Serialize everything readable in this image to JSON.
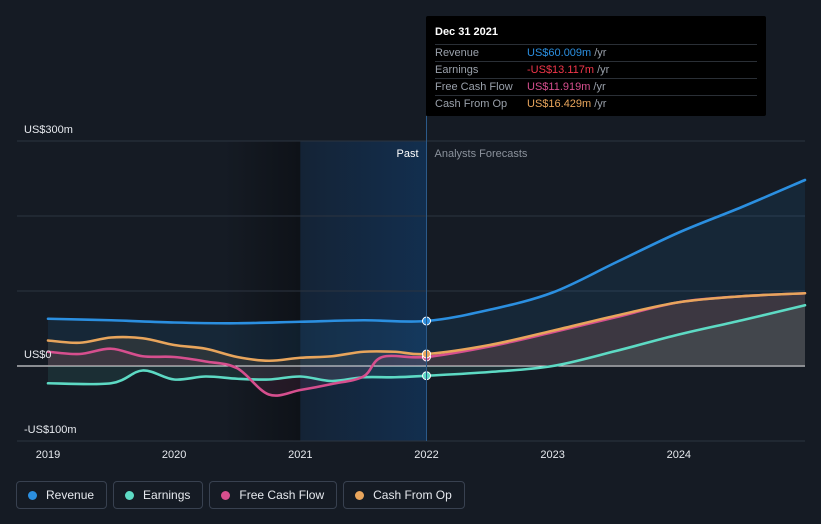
{
  "chart_data": {
    "type": "line",
    "title": "",
    "y_axis": {
      "labels": [
        "US$300m",
        "US$0",
        "-US$100m"
      ],
      "range": [
        -100,
        300
      ]
    },
    "x_axis": {
      "labels": [
        "2019",
        "2020",
        "2021",
        "2022",
        "2023",
        "2024"
      ],
      "range": [
        2019,
        2025
      ]
    },
    "past_label": "Past",
    "forecast_label": "Analysts Forecasts",
    "divider_x": 2022,
    "highlight_range": [
      2021,
      2022
    ],
    "series": [
      {
        "name": "Revenue",
        "color": "#2b8fe0",
        "area": true,
        "points": [
          [
            2019,
            63
          ],
          [
            2019.5,
            61
          ],
          [
            2020,
            58
          ],
          [
            2020.5,
            57
          ],
          [
            2021,
            59
          ],
          [
            2021.5,
            61
          ],
          [
            2022,
            60
          ],
          [
            2022.5,
            75
          ],
          [
            2023,
            98
          ],
          [
            2023.5,
            138
          ],
          [
            2024,
            178
          ],
          [
            2024.5,
            212
          ],
          [
            2025,
            248
          ]
        ]
      },
      {
        "name": "Earnings",
        "color": "#5ddac4",
        "area": true,
        "points": [
          [
            2019,
            -23
          ],
          [
            2019.5,
            -23
          ],
          [
            2019.75,
            -6
          ],
          [
            2020,
            -18
          ],
          [
            2020.25,
            -14
          ],
          [
            2020.5,
            -17
          ],
          [
            2020.75,
            -18
          ],
          [
            2021,
            -14
          ],
          [
            2021.25,
            -20
          ],
          [
            2021.5,
            -15
          ],
          [
            2021.75,
            -15
          ],
          [
            2022,
            -13
          ],
          [
            2022.5,
            -8
          ],
          [
            2023,
            0
          ],
          [
            2023.5,
            20
          ],
          [
            2024,
            42
          ],
          [
            2024.5,
            61
          ],
          [
            2025,
            81
          ]
        ]
      },
      {
        "name": "Free Cash Flow",
        "color": "#d64f8e",
        "area": true,
        "points": [
          [
            2019,
            19
          ],
          [
            2019.25,
            16
          ],
          [
            2019.5,
            23
          ],
          [
            2019.75,
            13
          ],
          [
            2020,
            12
          ],
          [
            2020.25,
            6
          ],
          [
            2020.5,
            -3
          ],
          [
            2020.75,
            -38
          ],
          [
            2021,
            -32
          ],
          [
            2021.25,
            -24
          ],
          [
            2021.5,
            -14
          ],
          [
            2021.65,
            12
          ],
          [
            2022,
            12
          ],
          [
            2022.5,
            26
          ],
          [
            2023,
            45
          ],
          [
            2023.5,
            65
          ],
          [
            2024,
            85
          ],
          [
            2024.5,
            93
          ],
          [
            2025,
            97
          ]
        ]
      },
      {
        "name": "Cash From Op",
        "color": "#e8a55c",
        "area": true,
        "points": [
          [
            2019,
            34
          ],
          [
            2019.25,
            31
          ],
          [
            2019.5,
            38
          ],
          [
            2019.75,
            37
          ],
          [
            2020,
            28
          ],
          [
            2020.25,
            23
          ],
          [
            2020.5,
            12
          ],
          [
            2020.75,
            7
          ],
          [
            2021,
            11
          ],
          [
            2021.25,
            13
          ],
          [
            2021.5,
            19
          ],
          [
            2021.75,
            19
          ],
          [
            2022,
            16
          ],
          [
            2022.5,
            28
          ],
          [
            2023,
            47
          ],
          [
            2023.5,
            67
          ],
          [
            2024,
            85
          ],
          [
            2024.5,
            93
          ],
          [
            2025,
            97
          ]
        ]
      }
    ]
  },
  "tooltip": {
    "date": "Dec 31 2021",
    "rows": [
      {
        "label": "Revenue",
        "value": "US$60.009m",
        "unit": "/yr",
        "color": "#2b8fe0"
      },
      {
        "label": "Earnings",
        "value": "-US$13.117m",
        "unit": "/yr",
        "color": "#f2364a"
      },
      {
        "label": "Free Cash Flow",
        "value": "US$11.919m",
        "unit": "/yr",
        "color": "#d64f8e"
      },
      {
        "label": "Cash From Op",
        "value": "US$16.429m",
        "unit": "/yr",
        "color": "#e8a55c"
      }
    ]
  },
  "legend": [
    {
      "label": "Revenue",
      "color": "#2b8fe0"
    },
    {
      "label": "Earnings",
      "color": "#5ddac4"
    },
    {
      "label": "Free Cash Flow",
      "color": "#d64f8e"
    },
    {
      "label": "Cash From Op",
      "color": "#e8a55c"
    }
  ]
}
